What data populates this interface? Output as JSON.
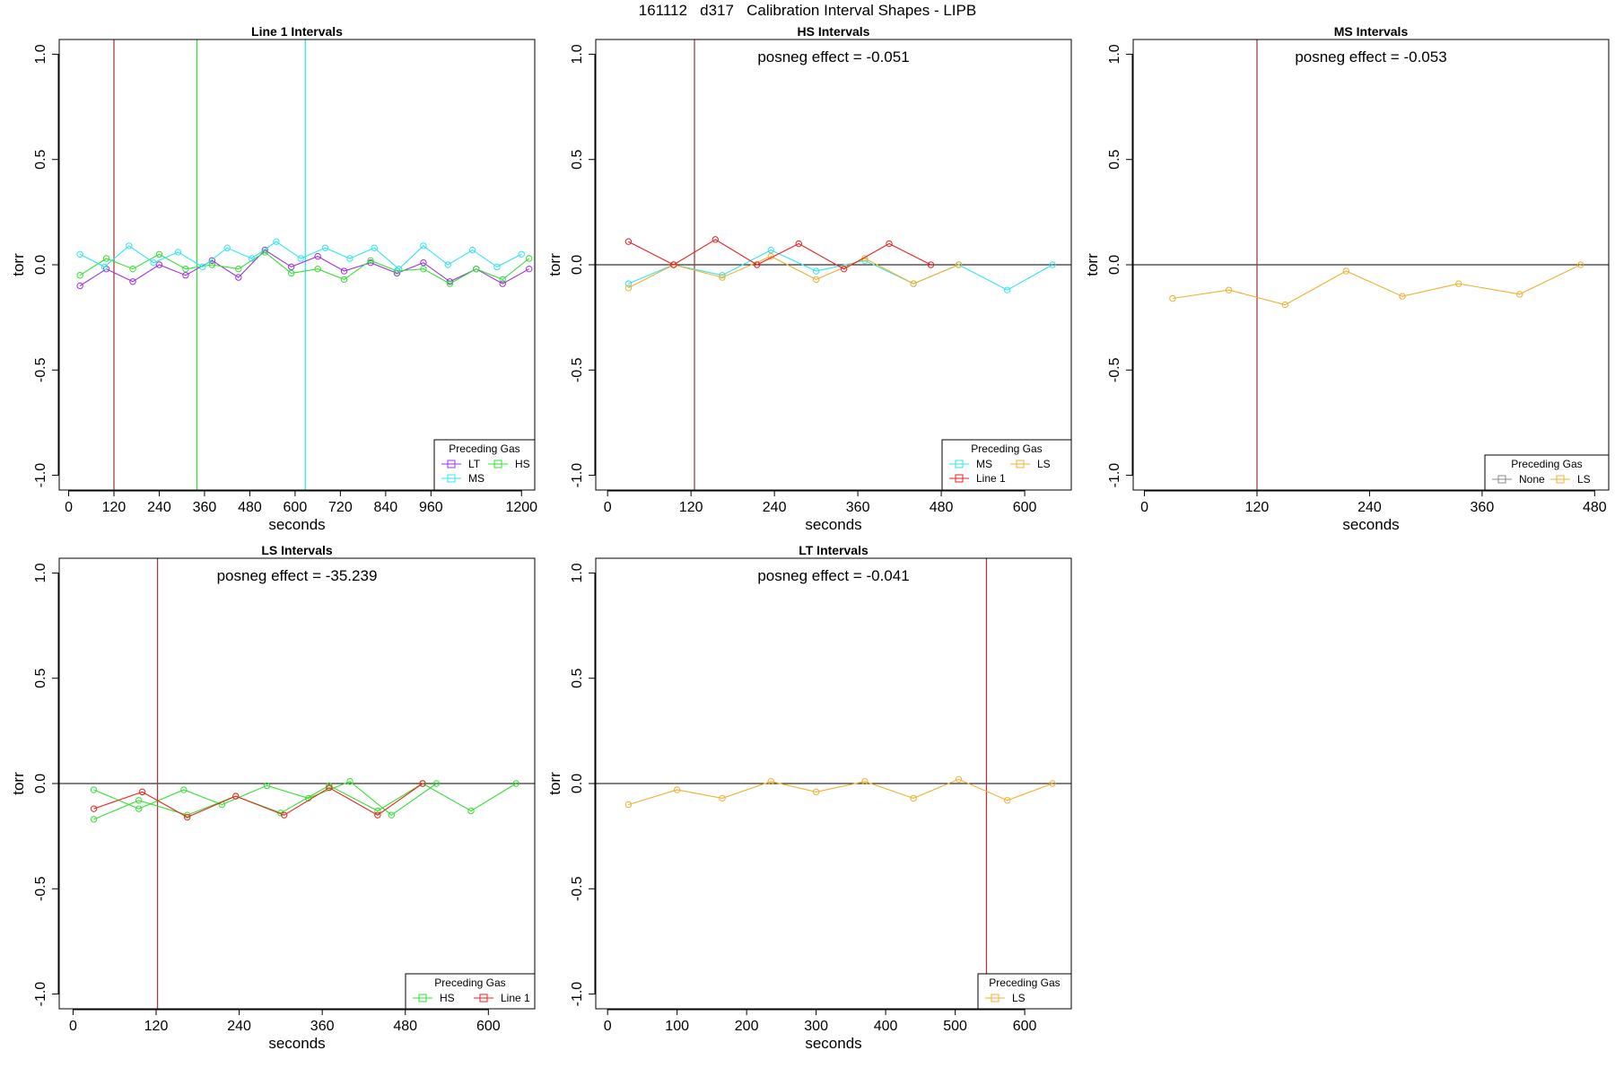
{
  "page_title": "161112   d317   Calibration Interval Shapes - LIPB",
  "colors": {
    "LT": "#a030e0",
    "HS": "#33e033",
    "MS": "#33e5ef",
    "LS": "#f0b030",
    "Line 1": "#ee2020",
    "None": "#888888",
    "cal_line": "#a04040",
    "axis": "#000000"
  },
  "chart_data": [
    {
      "type": "line",
      "title": "Line 1 Intervals",
      "xlabel": "seconds",
      "ylabel": "torr",
      "xlim": [
        -25,
        1235
      ],
      "ylim": [
        -1.07,
        1.07
      ],
      "xticks": [
        0,
        120,
        240,
        360,
        480,
        600,
        720,
        840,
        960,
        1200
      ],
      "yticks": [
        1.0,
        0.5,
        0.0,
        -0.5,
        -1.0
      ],
      "ytick_labels": [
        "1.0",
        "0.5",
        "0.0",
        "-0.5",
        "-1.0"
      ],
      "hline": null,
      "vlines": [
        {
          "x": 120,
          "color": "#a04040"
        },
        {
          "x": 340,
          "color": "#33e033"
        },
        {
          "x": 627,
          "color": "#33e5ef"
        }
      ],
      "annotation": "",
      "legend": {
        "title": "Preceding Gas",
        "position": "bottom-right",
        "columns": 2,
        "entries": [
          "LT",
          "HS",
          "MS"
        ]
      },
      "series": [
        {
          "name": "LT",
          "color": "#a030e0",
          "x": [
            30,
            100,
            170,
            240,
            310,
            380,
            450,
            520,
            590,
            660,
            730,
            800,
            870,
            940,
            1010,
            1080,
            1150,
            1220
          ],
          "y": [
            -0.1,
            -0.02,
            -0.08,
            0.0,
            -0.05,
            0.02,
            -0.06,
            0.07,
            -0.01,
            0.04,
            -0.03,
            0.01,
            -0.04,
            0.01,
            -0.08,
            -0.02,
            -0.09,
            -0.02
          ]
        },
        {
          "name": "HS",
          "color": "#33e033",
          "x": [
            30,
            100,
            170,
            240,
            310,
            380,
            450,
            520,
            590,
            660,
            730,
            800,
            870,
            940,
            1010,
            1080,
            1150,
            1220
          ],
          "y": [
            -0.05,
            0.03,
            -0.02,
            0.05,
            -0.02,
            0.0,
            -0.02,
            0.06,
            -0.04,
            -0.02,
            -0.07,
            0.02,
            -0.03,
            -0.02,
            -0.09,
            -0.02,
            -0.07,
            0.03
          ]
        },
        {
          "name": "MS",
          "color": "#33e5ef",
          "x": [
            30,
            95,
            160,
            225,
            290,
            355,
            420,
            485,
            550,
            615,
            680,
            745,
            810,
            875,
            940,
            1005,
            1070,
            1135,
            1200
          ],
          "y": [
            0.05,
            -0.01,
            0.09,
            0.01,
            0.06,
            -0.01,
            0.08,
            0.03,
            0.11,
            0.03,
            0.08,
            0.03,
            0.08,
            -0.02,
            0.09,
            0.0,
            0.07,
            -0.01,
            0.05
          ]
        }
      ]
    },
    {
      "type": "line",
      "title": "HS Intervals",
      "xlabel": "seconds",
      "ylabel": "torr",
      "xlim": [
        -17,
        667
      ],
      "ylim": [
        -1.07,
        1.07
      ],
      "xticks": [
        0,
        120,
        240,
        360,
        480,
        600
      ],
      "yticks": [
        1.0,
        0.5,
        0.0,
        -0.5,
        -1.0
      ],
      "ytick_labels": [
        "1.0",
        "0.5",
        "0.0",
        "-0.5",
        "-1.0"
      ],
      "hline": 0,
      "vlines": [
        {
          "x": 125,
          "color": "#a04040"
        }
      ],
      "annotation": "posneg effect = -0.051",
      "legend": {
        "title": "Preceding Gas",
        "position": "bottom-right",
        "columns": 2,
        "entries": [
          "MS",
          "LS",
          "Line 1"
        ]
      },
      "series": [
        {
          "name": "MS",
          "color": "#33e5ef",
          "x": [
            30,
            95,
            165,
            235,
            300,
            370,
            440,
            505,
            575,
            640
          ],
          "y": [
            -0.09,
            0.0,
            -0.05,
            0.07,
            -0.03,
            0.02,
            -0.09,
            0.0,
            -0.12,
            0.0
          ]
        },
        {
          "name": "LS",
          "color": "#f0b030",
          "x": [
            30,
            95,
            165,
            235,
            300,
            370,
            440,
            505
          ],
          "y": [
            -0.11,
            0.0,
            -0.06,
            0.04,
            -0.07,
            0.03,
            -0.09,
            0.0
          ]
        },
        {
          "name": "Line 1",
          "color": "#ee2020",
          "x": [
            30,
            95,
            155,
            215,
            275,
            340,
            405,
            465
          ],
          "y": [
            0.11,
            0.0,
            0.12,
            0.0,
            0.1,
            -0.02,
            0.1,
            0.0
          ]
        }
      ]
    },
    {
      "type": "line",
      "title": "MS Intervals",
      "xlabel": "seconds",
      "ylabel": "torr",
      "xlim": [
        -12,
        495
      ],
      "ylim": [
        -1.07,
        1.07
      ],
      "xticks": [
        0,
        120,
        240,
        360,
        480
      ],
      "yticks": [
        1.0,
        0.5,
        0.0,
        -0.5,
        -1.0
      ],
      "ytick_labels": [
        "1.0",
        "0.5",
        "0.0",
        "-0.5",
        "-1.0"
      ],
      "hline": 0,
      "vlines": [
        {
          "x": 120,
          "color": "#a04040"
        }
      ],
      "annotation": "posneg effect = -0.053",
      "legend": {
        "title": "Preceding Gas",
        "position": "bottom-right",
        "columns": 2,
        "entries": [
          "None",
          "LS"
        ]
      },
      "series": [
        {
          "name": "LS",
          "color": "#f0b030",
          "x": [
            30,
            90,
            150,
            215,
            275,
            335,
            400,
            465
          ],
          "y": [
            -0.16,
            -0.12,
            -0.19,
            -0.03,
            -0.15,
            -0.09,
            -0.14,
            0.0
          ]
        }
      ]
    },
    {
      "type": "line",
      "title": "LS Intervals",
      "xlabel": "seconds",
      "ylabel": "torr",
      "xlim": [
        -20,
        667
      ],
      "ylim": [
        -1.07,
        1.07
      ],
      "xticks": [
        0,
        120,
        240,
        360,
        480,
        600
      ],
      "yticks": [
        1.0,
        0.5,
        0.0,
        -0.5,
        -1.0
      ],
      "ytick_labels": [
        "1.0",
        "0.5",
        "0.0",
        "-0.5",
        "-1.0"
      ],
      "hline": 0,
      "vlines": [
        {
          "x": 122,
          "color": "#a04040"
        }
      ],
      "annotation": "posneg effect = -35.239",
      "legend": {
        "title": "Preceding Gas",
        "position": "bottom-right",
        "columns": 2,
        "entries": [
          "HS",
          "Line 1"
        ]
      },
      "series": [
        {
          "name": "HS",
          "color": "#33e033",
          "x": [
            30,
            95,
            165,
            235,
            300,
            370,
            440,
            505,
            575,
            640
          ],
          "y": [
            -0.17,
            -0.08,
            -0.15,
            -0.06,
            -0.14,
            -0.01,
            -0.13,
            0.0,
            -0.13,
            0.0
          ]
        },
        {
          "name": "HS",
          "color": "#33e033",
          "x": [
            30,
            95,
            160,
            215,
            280,
            340,
            400,
            460,
            525
          ],
          "y": [
            -0.03,
            -0.12,
            -0.03,
            -0.1,
            -0.01,
            -0.07,
            0.01,
            -0.15,
            0.0
          ]
        },
        {
          "name": "Line 1",
          "color": "#ee2020",
          "x": [
            30,
            100,
            165,
            235,
            305,
            370,
            440,
            505
          ],
          "y": [
            -0.12,
            -0.04,
            -0.16,
            -0.06,
            -0.15,
            -0.02,
            -0.15,
            0.0
          ]
        }
      ]
    },
    {
      "type": "line",
      "title": "LT Intervals",
      "xlabel": "seconds",
      "ylabel": "torr",
      "xlim": [
        -17,
        667
      ],
      "ylim": [
        -1.07,
        1.07
      ],
      "xticks": [
        0,
        100,
        200,
        300,
        400,
        500,
        600
      ],
      "yticks": [
        1.0,
        0.5,
        0.0,
        -0.5,
        -1.0
      ],
      "ytick_labels": [
        "1.0",
        "0.5",
        "0.0",
        "-0.5",
        "-1.0"
      ],
      "hline": 0,
      "vlines": [
        {
          "x": 545,
          "color": "#a04040"
        }
      ],
      "annotation": "posneg effect = -0.041",
      "legend": {
        "title": "Preceding Gas",
        "position": "bottom-right",
        "columns": 1,
        "entries": [
          "LS"
        ]
      },
      "series": [
        {
          "name": "LS",
          "color": "#f0b030",
          "x": [
            30,
            100,
            165,
            235,
            300,
            370,
            440,
            505,
            575,
            640
          ],
          "y": [
            -0.1,
            -0.03,
            -0.07,
            0.01,
            -0.04,
            0.01,
            -0.07,
            0.02,
            -0.08,
            0.0
          ]
        }
      ]
    }
  ]
}
